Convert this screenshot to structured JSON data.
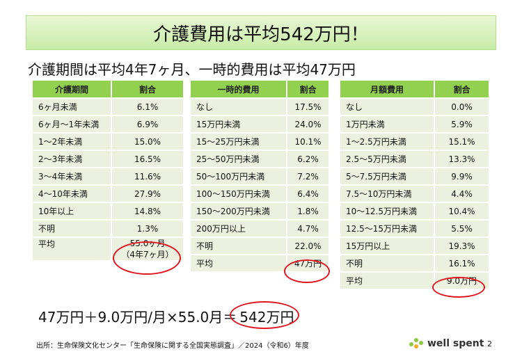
{
  "title": "介護費用は平均542万円！",
  "subtitle": "介護期間は平均4年7ヶ月、一時的費用は平均47万円",
  "tables": [
    {
      "headers": [
        "介護期間",
        "割合"
      ],
      "rows": [
        [
          "6ヶ月未満",
          "6.1%"
        ],
        [
          "6ヶ月〜1年未満",
          "6.9%"
        ],
        [
          "1〜2年未満",
          "15.0%"
        ],
        [
          "2〜3年未満",
          "16.5%"
        ],
        [
          "3〜4年未満",
          "11.6%"
        ],
        [
          "4〜10年未満",
          "27.9%"
        ],
        [
          "10年以上",
          "14.8%"
        ],
        [
          "不明",
          "1.3%"
        ]
      ],
      "avg_label": "平均",
      "avg_value_line1": "55.0ヶ月",
      "avg_value_line2": "（4年7ヶ月）"
    },
    {
      "headers": [
        "一時的費用",
        "割合"
      ],
      "rows": [
        [
          "なし",
          "17.5%"
        ],
        [
          "15万円未満",
          "24.0%"
        ],
        [
          "15〜25万円未満",
          "10.1%"
        ],
        [
          "25〜50万円未満",
          "6.2%"
        ],
        [
          "50〜100万円未満",
          "7.2%"
        ],
        [
          "100〜150万円未満",
          "6.4%"
        ],
        [
          "150〜200万円未満",
          "1.8%"
        ],
        [
          "200万円以上",
          "4.7%"
        ],
        [
          "不明",
          "22.0%"
        ]
      ],
      "avg_label": "平均",
      "avg_value": "47万円"
    },
    {
      "headers": [
        "月額費用",
        "割合"
      ],
      "rows": [
        [
          "なし",
          "0.0%"
        ],
        [
          "1万円未満",
          "5.9%"
        ],
        [
          "1〜2.5万円未満",
          "15.1%"
        ],
        [
          "2.5〜5万円未満",
          "13.3%"
        ],
        [
          "5〜7.5万円未満",
          "9.9%"
        ],
        [
          "7.5〜10万円未満",
          "4.4%"
        ],
        [
          "10〜12.5万円未満",
          "10.4%"
        ],
        [
          "12.5〜15万円未満",
          "5.5%"
        ],
        [
          "15万円以上",
          "19.3%"
        ],
        [
          "不明",
          "16.1%"
        ]
      ],
      "avg_label": "平均",
      "avg_value": "9.0万円"
    }
  ],
  "formula": "47万円＋9.0万円/月×55.0月＝",
  "formula_result": "542万円",
  "source": "出所：生命保険文化センター「生命保険に関する全国実態調査」／2024（令和6）年度",
  "logo_text": "well spent",
  "page_number": "2",
  "colors": {
    "header": "#92d050",
    "cell": "#ebf1de",
    "highlight": "#e0141e"
  }
}
